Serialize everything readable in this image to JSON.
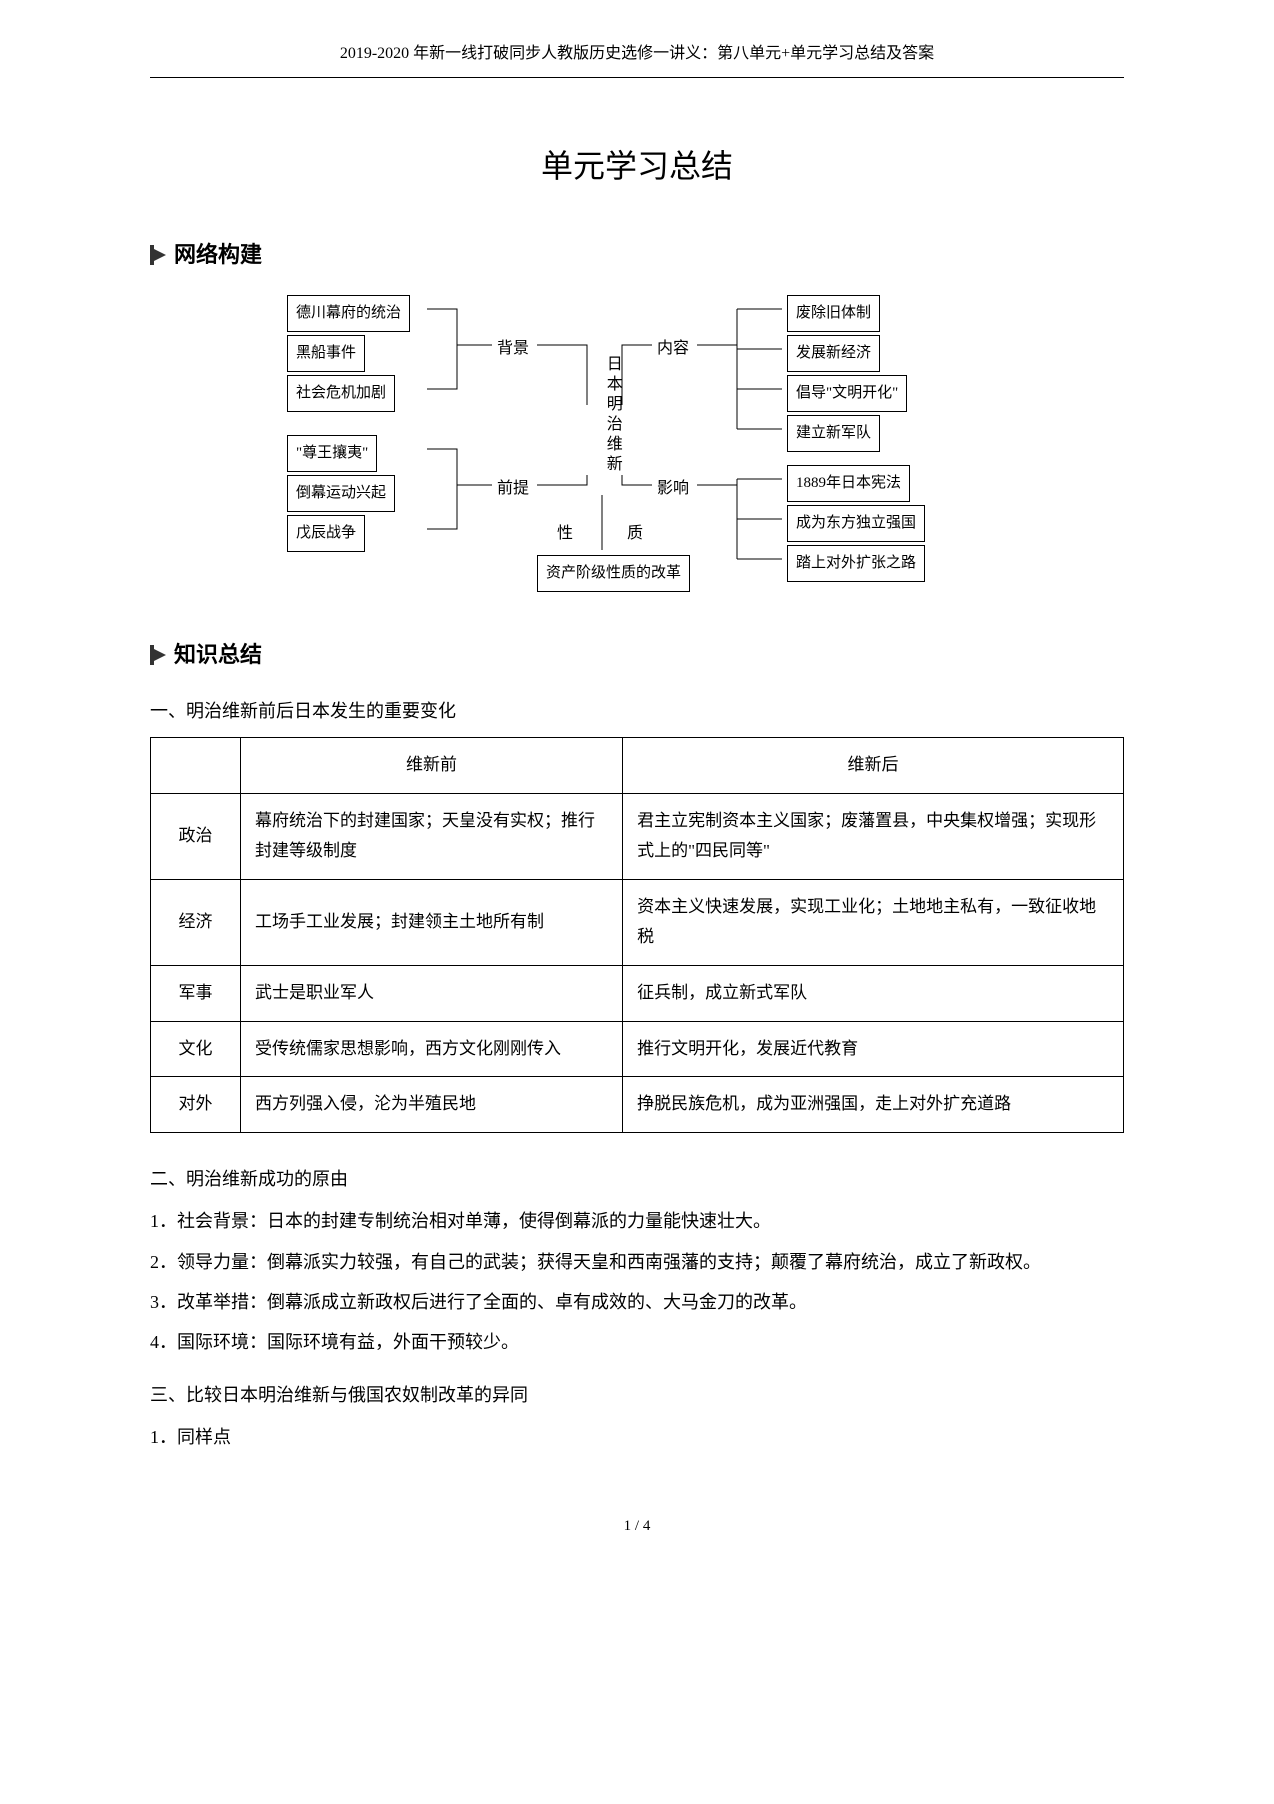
{
  "header": "2019-2020 年新一线打破同步人教版历史选修一讲义：第八单元+单元学习总结及答案",
  "main_title": "单元学习总结",
  "sections": {
    "network": "网络构建",
    "knowledge": "知识总结"
  },
  "diagram": {
    "background_color": "#ffffff",
    "border_color": "#000000",
    "font_size": 15,
    "left_upper": [
      "德川幕府的统治",
      "黑船事件",
      "社会危机加剧"
    ],
    "left_lower": [
      "\"尊王攘夷\"",
      "倒幕运动兴起",
      "戊辰战争"
    ],
    "center_vertical": "日本明治维新",
    "mid_left": [
      "背景",
      "前提"
    ],
    "mid_right": [
      "内容",
      "影响"
    ],
    "right_upper": [
      "废除旧体制",
      "发展新经济",
      "倡导\"文明开化\"",
      "建立新军队"
    ],
    "right_lower": [
      "1889年日本宪法",
      "成为东方独立强国",
      "踏上对外扩张之路"
    ],
    "bottom_left": "性",
    "bottom_right": "质",
    "bottom_box": "资产阶级性质的改革"
  },
  "subsection1": "一、明治维新前后日本发生的重要变化",
  "table": {
    "border_color": "#000000",
    "font_size": 17,
    "columns": [
      "",
      "维新前",
      "维新后"
    ],
    "rows": [
      {
        "label": "政治",
        "before": "幕府统治下的封建国家；天皇没有实权；推行封建等级制度",
        "after": "君主立宪制资本主义国家；废藩置县，中央集权增强；实现形式上的\"四民同等\""
      },
      {
        "label": "经济",
        "before": "工场手工业发展；封建领主土地所有制",
        "after": "资本主义快速发展，实现工业化；土地地主私有，一致征收地税"
      },
      {
        "label": "军事",
        "before": "武士是职业军人",
        "after": "征兵制，成立新式军队"
      },
      {
        "label": "文化",
        "before": "受传统儒家思想影响，西方文化刚刚传入",
        "after": "推行文明开化，发展近代教育"
      },
      {
        "label": "对外",
        "before": "西方列强入侵，沦为半殖民地",
        "after": "挣脱民族危机，成为亚洲强国，走上对外扩充道路"
      }
    ]
  },
  "subsection2": "二、明治维新成功的原由",
  "reasons": [
    "1．社会背景：日本的封建专制统治相对单薄，使得倒幕派的力量能快速壮大。",
    "2．领导力量：倒幕派实力较强，有自己的武装；获得天皇和西南强藩的支持；颠覆了幕府统治，成立了新政权。",
    "3．改革举措：倒幕派成立新政权后进行了全面的、卓有成效的、大马金刀的改革。",
    "4．国际环境：国际环境有益，外面干预较少。"
  ],
  "subsection3": "三、比较日本明治维新与俄国农奴制改革的异同",
  "point1": "1．同样点",
  "page_number": "1 / 4"
}
